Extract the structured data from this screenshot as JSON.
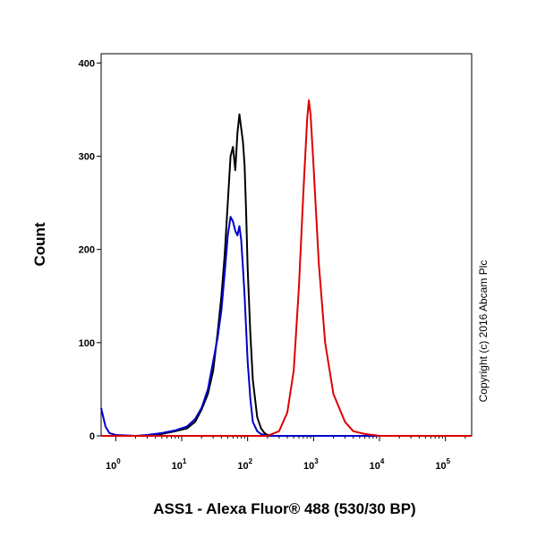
{
  "chart_data": {
    "type": "line",
    "title": "",
    "xlabel": "ASS1 - Alexa Fluor® 488 (530/30 BP)",
    "ylabel": "Count",
    "x_scale": "log",
    "xlim": [
      0.6,
      250000
    ],
    "ylim": [
      0,
      410
    ],
    "x_ticks": [
      {
        "value": 1,
        "base": "10",
        "exp": "0"
      },
      {
        "value": 10,
        "base": "10",
        "exp": "1"
      },
      {
        "value": 100,
        "base": "10",
        "exp": "2"
      },
      {
        "value": 1000,
        "base": "10",
        "exp": "3"
      },
      {
        "value": 10000,
        "base": "10",
        "exp": "4"
      },
      {
        "value": 100000,
        "base": "10",
        "exp": "5"
      }
    ],
    "y_ticks": [
      {
        "value": 0,
        "label": "0"
      },
      {
        "value": 100,
        "label": "100"
      },
      {
        "value": 200,
        "label": "200"
      },
      {
        "value": 300,
        "label": "300"
      },
      {
        "value": 400,
        "label": "400"
      }
    ],
    "grid": false,
    "legend": "none",
    "annotation": "Copyright (c) 2016 Abcam Plc",
    "series": [
      {
        "color": "#000000",
        "x": [
          0.6,
          1,
          3,
          5,
          8,
          12,
          16,
          20,
          25,
          30,
          35,
          40,
          45,
          50,
          55,
          60,
          65,
          70,
          75,
          80,
          85,
          90,
          95,
          100,
          110,
          120,
          140,
          160,
          180,
          200,
          250,
          300,
          1000,
          250000
        ],
        "y": [
          0,
          0,
          0,
          2,
          5,
          8,
          15,
          28,
          45,
          70,
          110,
          150,
          195,
          250,
          300,
          310,
          285,
          325,
          345,
          330,
          315,
          290,
          240,
          180,
          110,
          60,
          20,
          8,
          3,
          1,
          0,
          0,
          0,
          0
        ]
      },
      {
        "color": "#0000cc",
        "x": [
          0.6,
          0.7,
          0.8,
          1,
          2,
          3,
          5,
          8,
          12,
          16,
          20,
          25,
          30,
          35,
          40,
          45,
          50,
          55,
          60,
          65,
          70,
          75,
          80,
          85,
          90,
          95,
          100,
          110,
          120,
          140,
          160,
          200,
          1000,
          250000
        ],
        "y": [
          30,
          10,
          3,
          1,
          0,
          1,
          3,
          6,
          10,
          18,
          30,
          50,
          80,
          105,
          135,
          175,
          215,
          235,
          230,
          220,
          215,
          225,
          210,
          180,
          150,
          115,
          80,
          40,
          15,
          5,
          2,
          0,
          0,
          0
        ]
      },
      {
        "color": "#dd0000",
        "x": [
          0.6,
          200,
          300,
          400,
          500,
          600,
          700,
          800,
          850,
          900,
          1000,
          1200,
          1500,
          2000,
          3000,
          4000,
          6000,
          8000,
          10000,
          20000,
          250000
        ],
        "y": [
          0,
          0,
          5,
          25,
          70,
          160,
          260,
          340,
          360,
          345,
          290,
          185,
          100,
          45,
          15,
          5,
          2,
          1,
          0,
          0,
          0
        ]
      }
    ]
  }
}
